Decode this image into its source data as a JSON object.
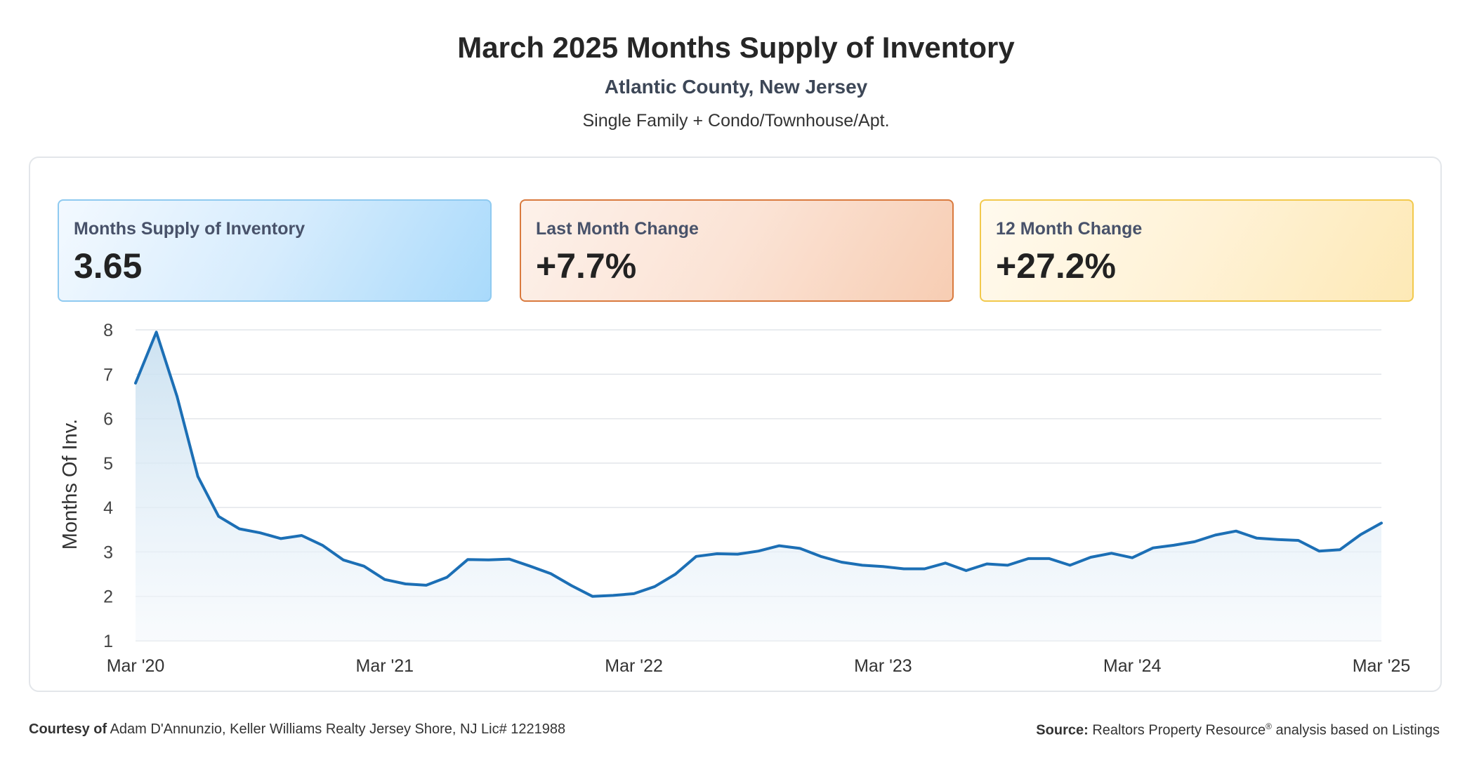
{
  "header": {
    "title": "March 2025 Months Supply of Inventory",
    "subtitle": "Atlantic County, New Jersey",
    "subtitle2": "Single Family + Condo/Townhouse/Apt."
  },
  "cards": [
    {
      "label": "Months Supply of Inventory",
      "value": "3.65"
    },
    {
      "label": "Last Month Change",
      "value": "+7.7%"
    },
    {
      "label": "12 Month Change",
      "value": "+27.2%"
    }
  ],
  "colors": {
    "line": "#1c6fb5",
    "fill_top": "#c7dff0",
    "fill_bottom": "#f4f8fc",
    "grid": "#e2e5ea",
    "card_blue": "#8fcaf0",
    "card_orange": "#d97a3e",
    "card_yellow": "#f2c94c"
  },
  "chart_data": {
    "type": "area",
    "title": "March 2025 Months Supply of Inventory",
    "xlabel": "",
    "ylabel": "Months Of Inv.",
    "ylim": [
      1,
      8
    ],
    "yticks": [
      "1",
      "2",
      "3",
      "4",
      "5",
      "6",
      "7",
      "8"
    ],
    "xticks": [
      "Mar '20",
      "Mar '21",
      "Mar '22",
      "Mar '23",
      "Mar '24",
      "Mar '25"
    ],
    "grid": true,
    "x": [
      "Mar '20",
      "Apr '20",
      "May '20",
      "Jun '20",
      "Jul '20",
      "Aug '20",
      "Sep '20",
      "Oct '20",
      "Nov '20",
      "Dec '20",
      "Jan '21",
      "Feb '21",
      "Mar '21",
      "Apr '21",
      "May '21",
      "Jun '21",
      "Jul '21",
      "Aug '21",
      "Sep '21",
      "Oct '21",
      "Nov '21",
      "Dec '21",
      "Jan '22",
      "Feb '22",
      "Mar '22",
      "Apr '22",
      "May '22",
      "Jun '22",
      "Jul '22",
      "Aug '22",
      "Sep '22",
      "Oct '22",
      "Nov '22",
      "Dec '22",
      "Jan '23",
      "Feb '23",
      "Mar '23",
      "Apr '23",
      "May '23",
      "Jun '23",
      "Jul '23",
      "Aug '23",
      "Sep '23",
      "Oct '23",
      "Nov '23",
      "Dec '23",
      "Jan '24",
      "Feb '24",
      "Mar '24",
      "Apr '24",
      "May '24",
      "Jun '24",
      "Jul '24",
      "Aug '24",
      "Sep '24",
      "Oct '24",
      "Nov '24",
      "Dec '24",
      "Jan '25",
      "Feb '25",
      "Mar '25"
    ],
    "values": [
      6.8,
      7.95,
      6.5,
      4.7,
      3.8,
      3.52,
      3.43,
      3.3,
      3.37,
      3.15,
      2.82,
      2.68,
      2.38,
      2.28,
      2.25,
      2.43,
      2.83,
      2.82,
      2.84,
      2.68,
      2.51,
      2.24,
      2.0,
      2.02,
      2.06,
      2.22,
      2.5,
      2.9,
      2.96,
      2.95,
      3.02,
      3.14,
      3.08,
      2.9,
      2.77,
      2.7,
      2.67,
      2.62,
      2.62,
      2.75,
      2.58,
      2.73,
      2.7,
      2.85,
      2.85,
      2.7,
      2.88,
      2.97,
      2.87,
      3.09,
      3.15,
      3.23,
      3.38,
      3.47,
      3.31,
      3.28,
      3.26,
      3.02,
      3.05,
      3.39,
      3.65
    ]
  },
  "footer": {
    "courtesy_label": "Courtesy of",
    "courtesy_text": "Adam D'Annunzio, Keller Williams Realty Jersey Shore, NJ Lic# 1221988",
    "source_label": "Source:",
    "source_text_1": "Realtors Property Resource",
    "source_sup": "®",
    "source_text_2": "analysis based on Listings"
  }
}
